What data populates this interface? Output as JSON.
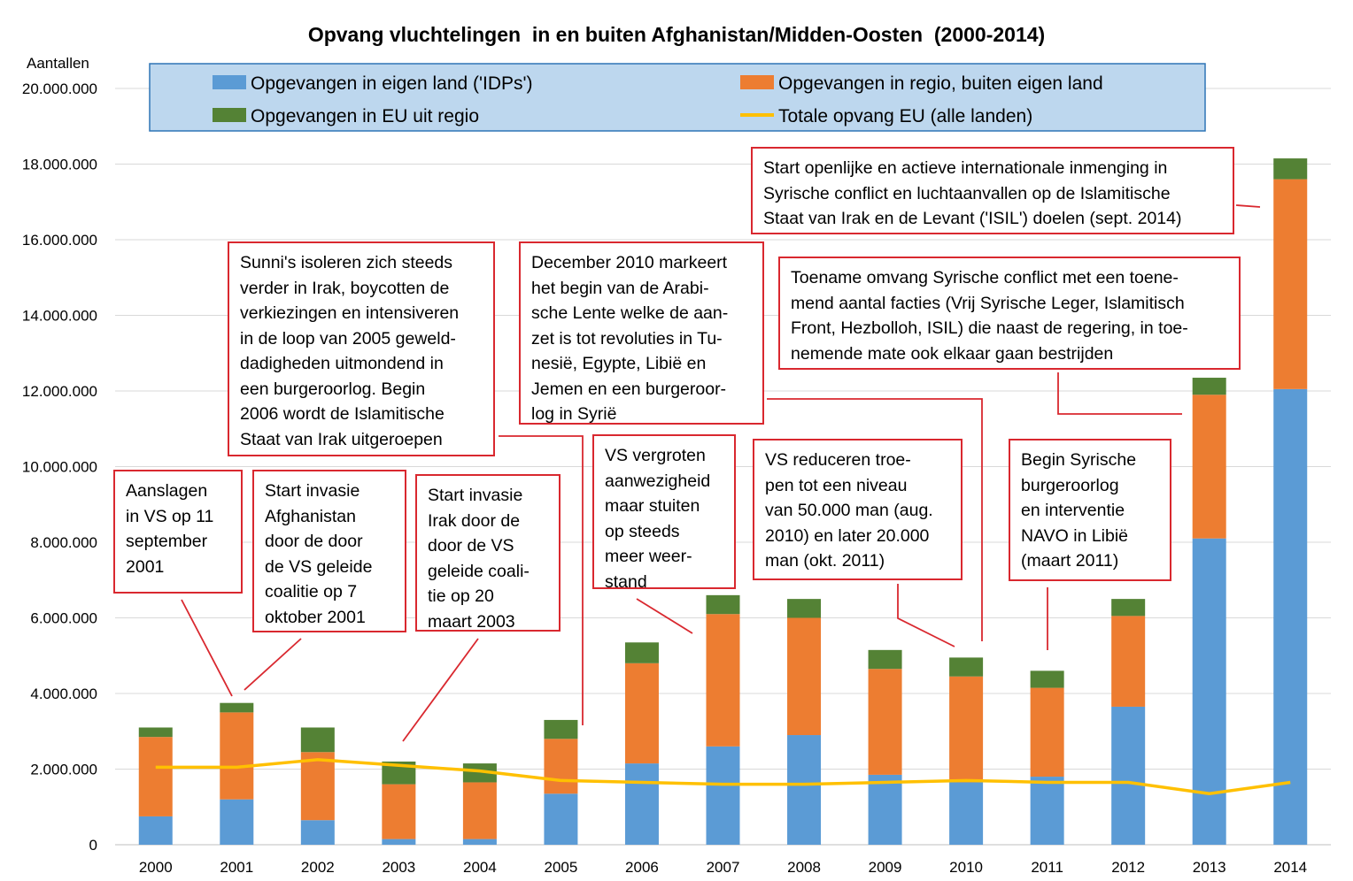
{
  "chart_data": {
    "type": "bar",
    "stacked": true,
    "title": "Opvang vluchtelingen  in en buiten Afghanistan/Midden-Oosten  (2000-2014)",
    "ylabel": "Aantallen",
    "xlabel": "",
    "ylim": [
      0,
      20000000
    ],
    "y_ticks": [
      0,
      2000000,
      4000000,
      6000000,
      8000000,
      10000000,
      12000000,
      14000000,
      16000000,
      18000000,
      20000000
    ],
    "y_tick_labels": [
      "0",
      "2.000.000",
      "4.000.000",
      "6.000.000",
      "8.000.000",
      "10.000.000",
      "12.000.000",
      "14.000.000",
      "16.000.000",
      "18.000.000",
      "20.000.000"
    ],
    "grid": true,
    "legend_position": "top",
    "categories": [
      "2000",
      "2001",
      "2002",
      "2003",
      "2004",
      "2005",
      "2006",
      "2007",
      "2008",
      "2009",
      "2010",
      "2011",
      "2012",
      "2013",
      "2014"
    ],
    "series": [
      {
        "name": "Opgevangen in eigen land ('IDPs')",
        "kind": "bar",
        "color": "#5b9bd5",
        "values": [
          750000,
          1200000,
          650000,
          150000,
          150000,
          1350000,
          2150000,
          2600000,
          2900000,
          1850000,
          1650000,
          1800000,
          3650000,
          8100000,
          12050000
        ]
      },
      {
        "name": "Opgevangen in regio, buiten eigen land",
        "kind": "bar",
        "color": "#ed7d31",
        "values": [
          2100000,
          2300000,
          1800000,
          1450000,
          1500000,
          1450000,
          2650000,
          3500000,
          3100000,
          2800000,
          2800000,
          2350000,
          2400000,
          3800000,
          5550000
        ]
      },
      {
        "name": "Opgevangen in EU uit regio",
        "kind": "bar",
        "color": "#548235",
        "values": [
          250000,
          250000,
          650000,
          600000,
          500000,
          500000,
          550000,
          500000,
          500000,
          500000,
          500000,
          450000,
          450000,
          450000,
          550000
        ]
      },
      {
        "name": "Totale opvang EU (alle landen)",
        "kind": "line",
        "color": "#ffc000",
        "values": [
          2050000,
          2050000,
          2250000,
          2100000,
          1950000,
          1700000,
          1650000,
          1600000,
          1600000,
          1650000,
          1700000,
          1650000,
          1650000,
          1350000,
          1650000
        ]
      }
    ],
    "annotations": [
      {
        "id": "ann-2001-attacks",
        "year": "2001",
        "text": "Aanslagen\nin VS op 11\nseptember\n2001"
      },
      {
        "id": "ann-afghanistan-invasion",
        "year": "2001",
        "text": "Start invasie\nAfghanistan\ndoor de door\nde VS geleide\ncoalitie op 7\noktober 2001"
      },
      {
        "id": "ann-iraq-invasion",
        "year": "2003",
        "text": "Start invasie\nIrak door de\ndoor de VS\ngeleide coali-\ntie op 20\nmaart 2003"
      },
      {
        "id": "ann-sunni",
        "year": "2005",
        "text": "Sunni's isoleren zich steeds\nverder in Irak, boycotten de\nverkiezingen en intensiveren\nin de loop van 2005 geweld-\ndadigheden uitmondend in\neen burgeroorlog. Begin\n2006 wordt de Islamitische\nStaat van Irak uitgeroepen"
      },
      {
        "id": "ann-arab-spring",
        "year": "2010",
        "text": "December 2010 markeert\nhet begin van de Arabi-\nsche Lente welke de aan-\nzet is tot revoluties in Tu-\nnesië, Egypte, Libië en\nJemen en een burgeroor-\nlog in Syrië"
      },
      {
        "id": "ann-us-increase",
        "year": "2007",
        "text": "VS vergroten\naanwezigheid\nmaar stuiten\nop steeds\nmeer weer-\nstand"
      },
      {
        "id": "ann-us-reduce",
        "year": "2010",
        "text": "VS reduceren troe-\npen tot een niveau\nvan 50.000 man (aug.\n2010) en later 20.000\nman (okt. 2011)"
      },
      {
        "id": "ann-syria-libya",
        "year": "2011",
        "text": "Begin Syrische\nburgeroorlog\nen interventie\nNAVO in Libië\n(maart 2011)"
      },
      {
        "id": "ann-syria-escalation",
        "year": "2013",
        "text": "Toename omvang Syrische conflict met een toene-\nmend aantal facties (Vrij Syrische Leger, Islamitisch\nFront, Hezbolloh, ISIL) die naast de regering, in toe-\nnemende mate ook elkaar gaan bestrijden"
      },
      {
        "id": "ann-isil-intervention",
        "year": "2014",
        "text": "Start openlijke en actieve  internationale inmenging in\nSyrische conflict en luchtaanvallen op de Islamitische\nStaat van Irak en de Levant ('ISIL') doelen (sept. 2014)"
      }
    ]
  }
}
